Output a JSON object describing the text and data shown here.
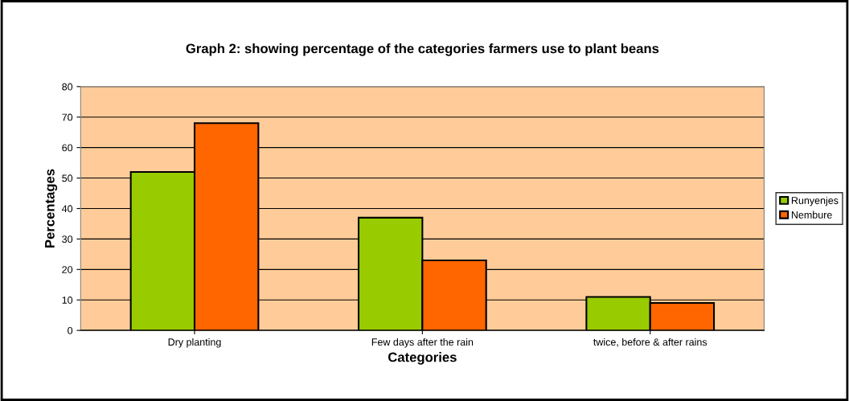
{
  "chart_data": {
    "type": "bar",
    "title": "Graph 2: showing percentage of the categories farmers use to plant beans",
    "xlabel": "Categories",
    "ylabel": "Percentages",
    "categories": [
      "Dry planting",
      "Few days after the rain",
      "twice, before & after rains"
    ],
    "series": [
      {
        "name": "Runyenjes",
        "color": "#99cc00",
        "values": [
          52,
          37,
          11
        ]
      },
      {
        "name": "Nembure",
        "color": "#ff6600",
        "values": [
          68,
          23,
          9
        ]
      }
    ],
    "ylim": [
      0,
      80
    ],
    "yticks": [
      0,
      10,
      20,
      30,
      40,
      50,
      60,
      70,
      80
    ],
    "grid": "y",
    "legend": "right"
  }
}
